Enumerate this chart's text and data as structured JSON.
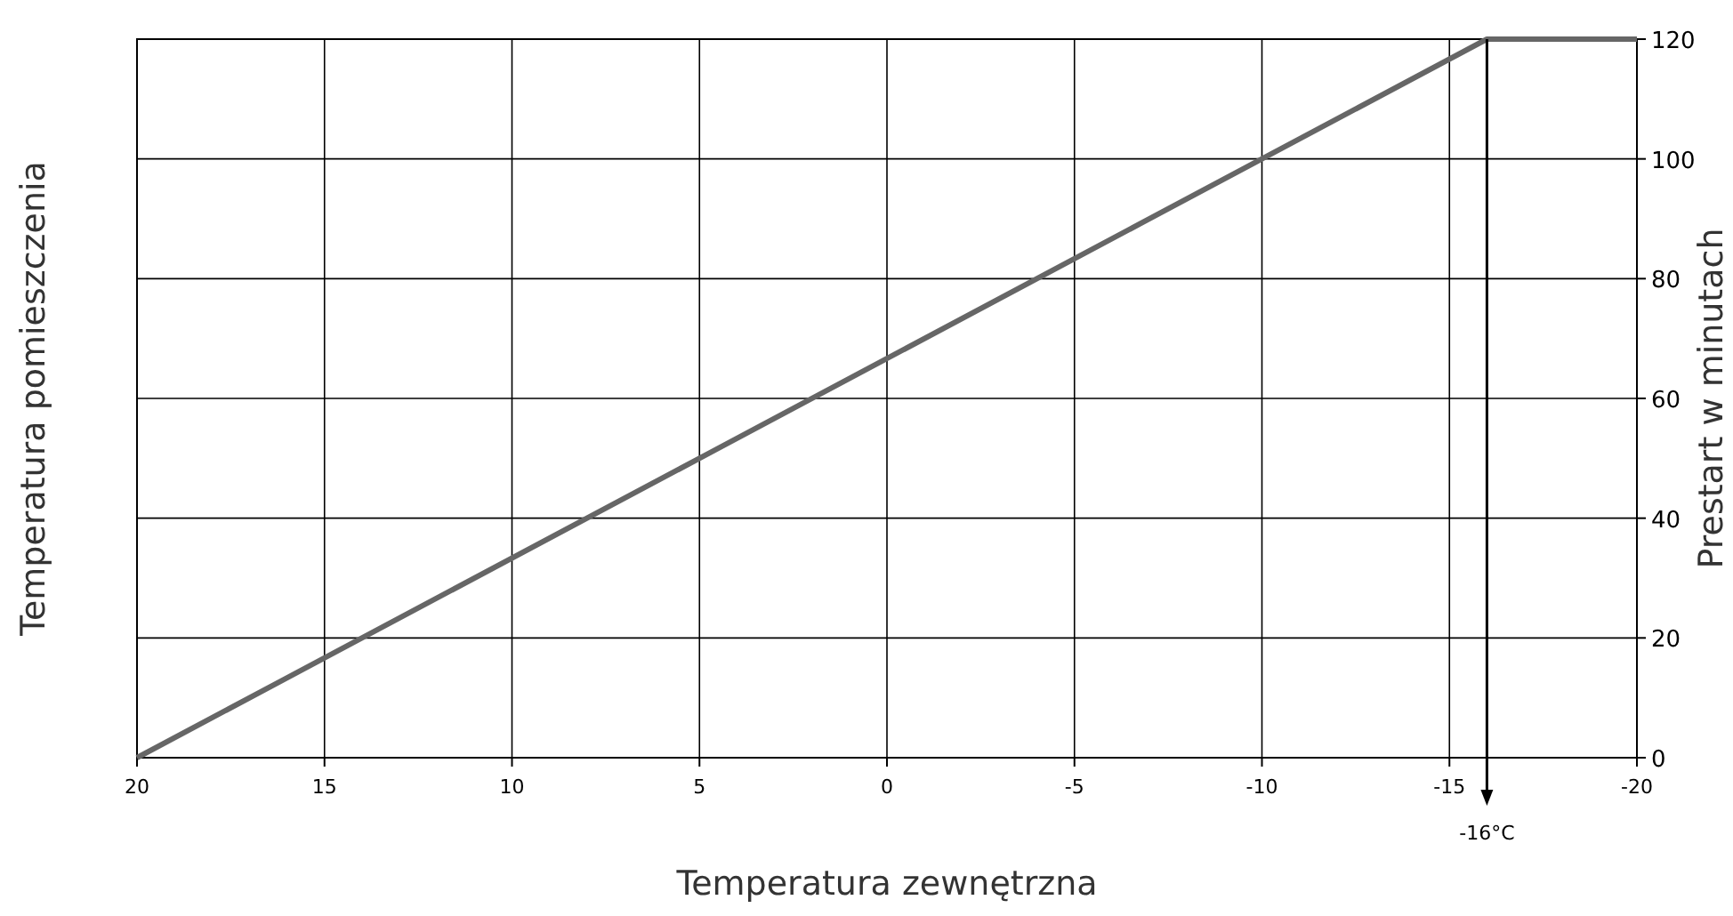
{
  "chart_data": {
    "type": "line",
    "xlabel": "Temperatura zewnętrzna",
    "ylabel": "Temperatura pomieszczenia",
    "y2label": "Prestart w minutach",
    "x": [
      20,
      -16,
      -20
    ],
    "series": [
      {
        "color": "#666666",
        "values": [
          0,
          120,
          120
        ],
        "axis": "y2"
      }
    ],
    "xlim": [
      20,
      -20
    ],
    "xticks": [
      20,
      15,
      10,
      5,
      0,
      -5,
      -10,
      -15,
      -20
    ],
    "y2lim": [
      0,
      120
    ],
    "y2ticks": [
      0,
      20,
      40,
      60,
      80,
      100,
      120
    ],
    "grid": true,
    "marker": "none",
    "line_style": "solid",
    "ref_lines": [
      {
        "axis": "x",
        "value": -16,
        "label": "-16°C",
        "color": "#000000"
      }
    ]
  }
}
